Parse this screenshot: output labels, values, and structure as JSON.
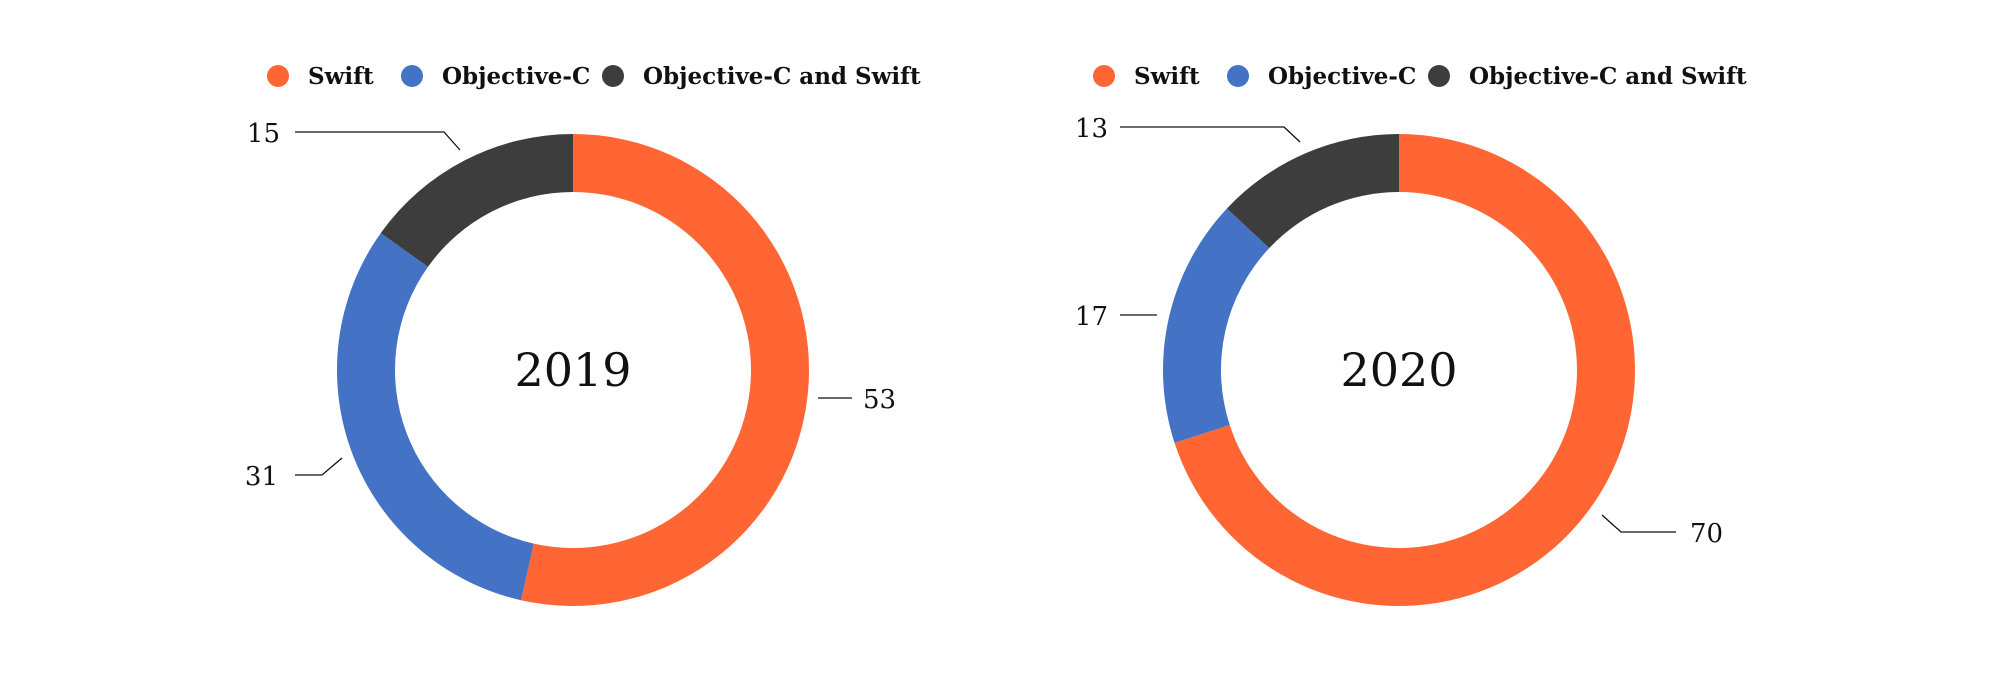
{
  "chart_data": [
    {
      "type": "pie",
      "center_label": "2019",
      "categories": [
        "Swift",
        "Objective-C",
        "Objective-C and Swift"
      ],
      "values": [
        53,
        31,
        15
      ],
      "colors": [
        "#ff6633",
        "#4472c4",
        "#3d3d3d"
      ],
      "legend": [
        "Swift",
        "Objective-C",
        "Objective-C and Swift"
      ],
      "legend_position": "top",
      "data_labels": [
        "53",
        "31",
        "15"
      ]
    },
    {
      "type": "pie",
      "center_label": "2020",
      "categories": [
        "Swift",
        "Objective-C",
        "Objective-C and Swift"
      ],
      "values": [
        70,
        17,
        13
      ],
      "colors": [
        "#ff6633",
        "#4472c4",
        "#3d3d3d"
      ],
      "legend": [
        "Swift",
        "Objective-C",
        "Objective-C and Swift"
      ],
      "legend_position": "top",
      "data_labels": [
        "70",
        "17",
        "13"
      ]
    }
  ]
}
